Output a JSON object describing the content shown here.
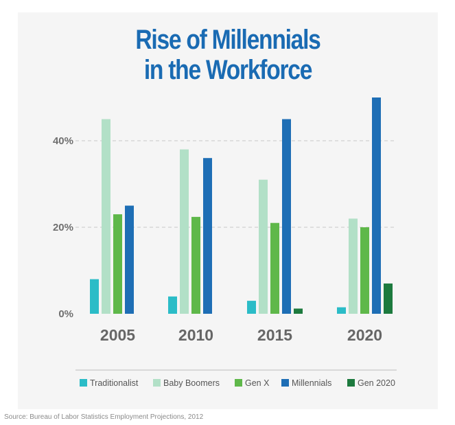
{
  "chart_data": {
    "type": "bar",
    "title_lines": [
      "Rise of Millennials",
      "in the Workforce"
    ],
    "categories": [
      "2005",
      "2010",
      "2015",
      "2020"
    ],
    "series": [
      {
        "name": "Traditionalist",
        "color": "#2bbcc7",
        "values": [
          8,
          4,
          3,
          1.5
        ]
      },
      {
        "name": "Baby Boomers",
        "color": "#b2e0c7",
        "values": [
          45,
          38,
          31,
          22
        ]
      },
      {
        "name": "Gen X",
        "color": "#5fb84a",
        "values": [
          23,
          22.4,
          21,
          20
        ]
      },
      {
        "name": "Millennials",
        "color": "#1e6eb5",
        "values": [
          25,
          36,
          45,
          50
        ]
      },
      {
        "name": "Gen 2020",
        "color": "#1d7a3e",
        "values": [
          0,
          0,
          1.2,
          7
        ]
      }
    ],
    "yticks": [
      "0%",
      "20%",
      "40%"
    ],
    "ytick_values": [
      0,
      20,
      40
    ],
    "ylim": [
      0,
      50
    ],
    "grid": "dashed at 20% and 40%",
    "legend_position": "bottom"
  },
  "source": "Source: Bureau of Labor Statistics Employment Projections, 2012"
}
